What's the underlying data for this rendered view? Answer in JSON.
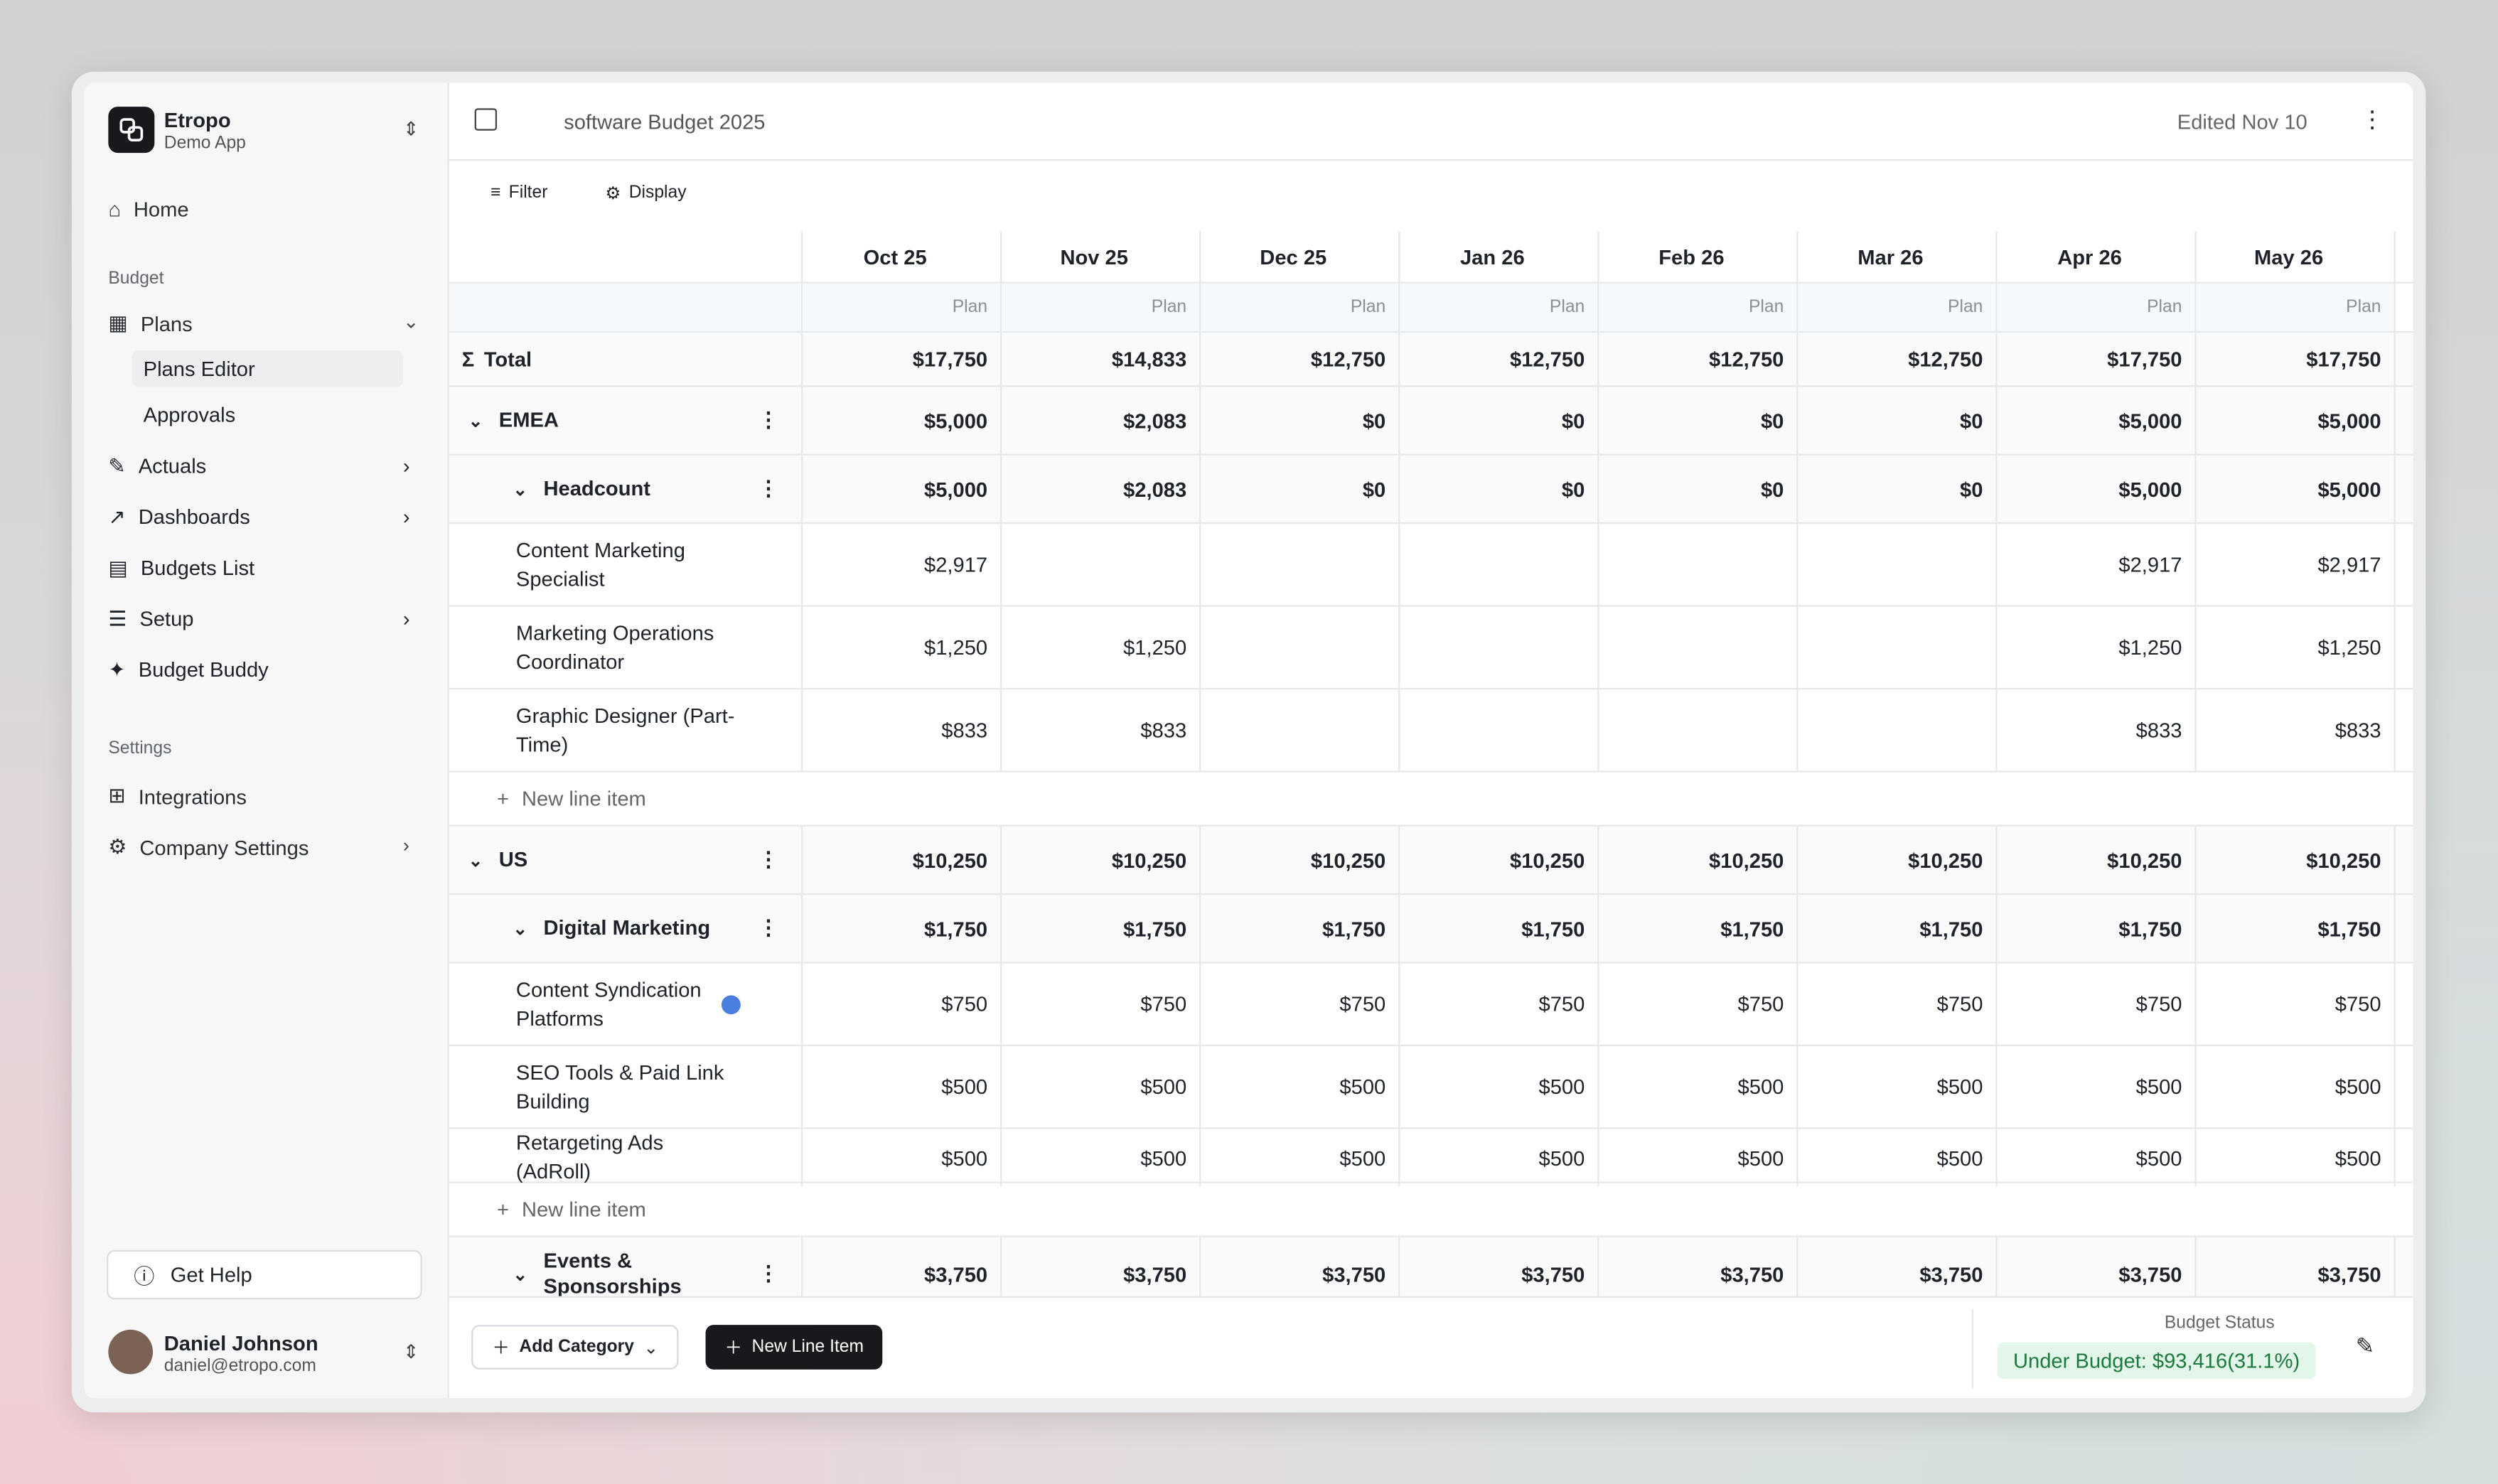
{
  "app": {
    "name": "Etropo",
    "subtitle": "Demo App"
  },
  "nav": {
    "home": "Home",
    "budget_section": "Budget",
    "plans": "Plans",
    "plans_children": [
      "Plans Editor",
      "Approvals"
    ],
    "items": [
      "Actuals",
      "Dashboards",
      "Budgets List",
      "Setup",
      "Budget Buddy"
    ],
    "settings_section": "Settings",
    "settings_items": [
      "Integrations",
      "Company Settings"
    ],
    "help": "Get Help"
  },
  "user": {
    "name": "Daniel Johnson",
    "email": "daniel@etropo.com"
  },
  "header": {
    "title": "software Budget 2025",
    "edited": "Edited Nov 10"
  },
  "toolbar": {
    "filter": "Filter",
    "display": "Display"
  },
  "table": {
    "columns": [
      "Oct 25",
      "Nov 25",
      "Dec 25",
      "Jan 26",
      "Feb 26",
      "Mar 26",
      "Apr 26",
      "May 26"
    ],
    "plan_label": "Plan",
    "total_label": "Total",
    "new_line_item": "New line item",
    "total": [
      "$17,750",
      "$14,833",
      "$12,750",
      "$12,750",
      "$12,750",
      "$12,750",
      "$17,750",
      "$17,750"
    ],
    "groups": [
      {
        "label": "EMEA",
        "values": [
          "$5,000",
          "$2,083",
          "$0",
          "$0",
          "$0",
          "$0",
          "$5,000",
          "$5,000"
        ],
        "subgroups": [
          {
            "label": "Headcount",
            "values": [
              "$5,000",
              "$2,083",
              "$0",
              "$0",
              "$0",
              "$0",
              "$5,000",
              "$5,000"
            ],
            "items": [
              {
                "label": "Content Marketing Specialist",
                "values": [
                  "$2,917",
                  null,
                  null,
                  null,
                  null,
                  null,
                  "$2,917",
                  "$2,917"
                ]
              },
              {
                "label": "Marketing Operations Coordinator",
                "values": [
                  "$1,250",
                  "$1,250",
                  null,
                  null,
                  null,
                  null,
                  "$1,250",
                  "$1,250"
                ]
              },
              {
                "label": "Graphic Designer (Part-Time)",
                "values": [
                  "$833",
                  "$833",
                  null,
                  null,
                  null,
                  null,
                  "$833",
                  "$833"
                ]
              }
            ]
          }
        ]
      },
      {
        "label": "US",
        "values": [
          "$10,250",
          "$10,250",
          "$10,250",
          "$10,250",
          "$10,250",
          "$10,250",
          "$10,250",
          "$10,250"
        ],
        "subgroups": [
          {
            "label": "Digital Marketing",
            "values": [
              "$1,750",
              "$1,750",
              "$1,750",
              "$1,750",
              "$1,750",
              "$1,750",
              "$1,750",
              "$1,750"
            ],
            "items": [
              {
                "label": "Content Syndication Platforms",
                "values": [
                  "$750",
                  "$750",
                  "$750",
                  "$750",
                  "$750",
                  "$750",
                  "$750",
                  "$750"
                ]
              },
              {
                "label": "SEO Tools & Paid Link Building",
                "values": [
                  "$500",
                  "$500",
                  "$500",
                  "$500",
                  "$500",
                  "$500",
                  "$500",
                  "$500"
                ]
              },
              {
                "label": "Retargeting Ads (AdRoll)",
                "values": [
                  "$500",
                  "$500",
                  "$500",
                  "$500",
                  "$500",
                  "$500",
                  "$500",
                  "$500"
                ]
              }
            ]
          },
          {
            "label": "Events & Sponsorships",
            "values": [
              "$3,750",
              "$3,750",
              "$3,750",
              "$3,750",
              "$3,750",
              "$3,750",
              "$3,750",
              "$3,750"
            ],
            "items": []
          }
        ]
      }
    ]
  },
  "footer": {
    "add_category": "Add Category",
    "new_line_item": "New Line Item",
    "status_label": "Budget Status",
    "status": "Under Budget: $93,416(31.1%)"
  }
}
